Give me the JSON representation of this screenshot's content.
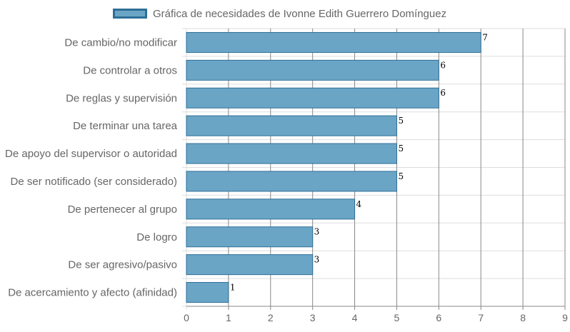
{
  "chart_data": {
    "type": "bar",
    "orientation": "horizontal",
    "categories": [
      "De cambio/no modificar",
      "De controlar a otros",
      "De reglas y supervisión",
      "De terminar una tarea",
      "De apoyo del supervisor o autoridad",
      "De ser notificado (ser considerado)",
      "De pertenecer al grupo",
      "De logro",
      "De ser agresivo/pasivo",
      "De acercamiento y afecto (afinidad)"
    ],
    "series": [
      {
        "name": "Gráfica de necesidades de Ivonne Edith Guerrero Domínguez",
        "values": [
          7,
          6,
          6,
          5,
          5,
          5,
          4,
          3,
          3,
          1
        ]
      }
    ],
    "xlim": [
      0,
      9
    ],
    "x_ticks": [
      0,
      1,
      2,
      3,
      4,
      5,
      6,
      7,
      8,
      9
    ],
    "grid": true,
    "data_labels": true,
    "legend_position": "top",
    "colors": {
      "bar_fill": "#6ba5c6",
      "bar_border": "#2e6e97",
      "grid": "#dddddd",
      "grid_strong": "#888888"
    }
  }
}
